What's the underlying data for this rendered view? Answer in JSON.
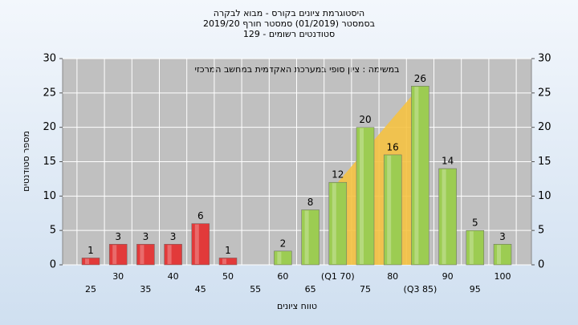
{
  "chart_data": {
    "type": "bar",
    "title": "היסטוגרמת ציונים בקורס - מבוא לבקרה",
    "subtitle": "בסמסטר  (01/2019)  סמסטר חורף 2019/20",
    "subtitle2": "סטודנטים רשומים - 129",
    "annotation": "במשימה : ציון סופי במערכת האקדמית במחשב המרכזי",
    "x_label": "טווח ציונים",
    "y_label": "מספר סטודנטים",
    "categories": [
      "25",
      "30",
      "35",
      "40",
      "45",
      "50",
      "55",
      "60",
      "65",
      "(Q1 70)",
      "75",
      "80",
      "(Q3 85)",
      "90",
      "95",
      "100"
    ],
    "values": [
      1,
      3,
      3,
      3,
      6,
      1,
      null,
      2,
      8,
      12,
      20,
      16,
      26,
      14,
      5,
      3
    ],
    "colors": [
      "#e23a3a",
      "#e23a3a",
      "#e23a3a",
      "#e23a3a",
      "#e23a3a",
      "#e23a3a",
      "#e23a3a",
      "#9ccc52",
      "#9ccc52",
      "#9ccc52",
      "#9ccc52",
      "#9ccc52",
      "#9ccc52",
      "#9ccc52",
      "#9ccc52",
      "#9ccc52"
    ],
    "ylim": [
      0,
      30
    ],
    "yticks": [
      0,
      5,
      10,
      15,
      20,
      25,
      30
    ],
    "y2lim": [
      0,
      30
    ],
    "y2ticks": [
      0,
      5,
      10,
      15,
      20,
      25,
      30
    ],
    "grid": true
  }
}
